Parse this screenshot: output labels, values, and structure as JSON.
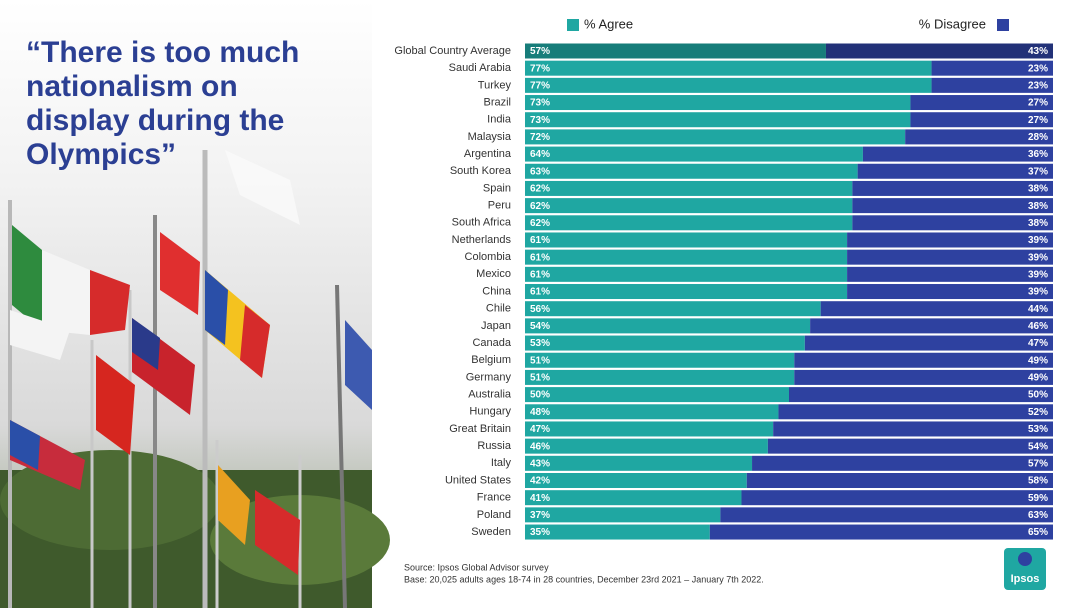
{
  "chart_data": {
    "type": "stacked-bar-100",
    "title": "“There is too much nationalism on display during the Olympics”",
    "categories": [
      "Global Country Average",
      "Saudi Arabia",
      "Turkey",
      "Brazil",
      "India",
      "Malaysia",
      "Argentina",
      "South Korea",
      "Spain",
      "Peru",
      "South Africa",
      "Netherlands",
      "Colombia",
      "Mexico",
      "China",
      "Chile",
      "Japan",
      "Canada",
      "Belgium",
      "Germany",
      "Australia",
      "Hungary",
      "Great Britain",
      "Russia",
      "Italy",
      "United States",
      "France",
      "Poland",
      "Sweden"
    ],
    "series": [
      {
        "name": "% Agree",
        "color": "#1fa7a2",
        "values": [
          57,
          77,
          77,
          73,
          73,
          72,
          64,
          63,
          62,
          62,
          62,
          61,
          61,
          61,
          61,
          56,
          54,
          53,
          51,
          51,
          50,
          48,
          47,
          46,
          43,
          42,
          41,
          37,
          35
        ],
        "value_labels": [
          "57%",
          "77%",
          "77%",
          "73%",
          "73%",
          "72%",
          "64%",
          "63%",
          "62%",
          "62%",
          "62%",
          "61%",
          "61%",
          "61%",
          "61%",
          "56%",
          "54%",
          "53%",
          "51%",
          "51%",
          "50%",
          "48%",
          "47%",
          "46%",
          "43%",
          "42%",
          "41%",
          "37%",
          "35%"
        ]
      },
      {
        "name": "% Disagree",
        "color": "#2e41a0",
        "values": [
          43,
          23,
          23,
          27,
          27,
          28,
          36,
          37,
          38,
          38,
          38,
          39,
          39,
          39,
          39,
          44,
          46,
          47,
          49,
          49,
          50,
          52,
          53,
          54,
          57,
          58,
          59,
          63,
          65
        ],
        "value_labels": [
          "43%",
          "23%",
          "23%",
          "27%",
          "27%",
          "28%",
          "36%",
          "37%",
          "38%",
          "38%",
          "38%",
          "39%",
          "39%",
          "39%",
          "39%",
          "44%",
          "46%",
          "47%",
          "49%",
          "49%",
          "50%",
          "52%",
          "53%",
          "54%",
          "57%",
          "58%",
          "59%",
          "63%",
          "65%"
        ]
      }
    ],
    "source": "Source: Ipsos Global Advisor survey",
    "base": "Base: 20,025 adults ages 18-74 in 28 countries, December 23rd 2021 – January 7th 2022.",
    "logo": "Ipsos"
  }
}
